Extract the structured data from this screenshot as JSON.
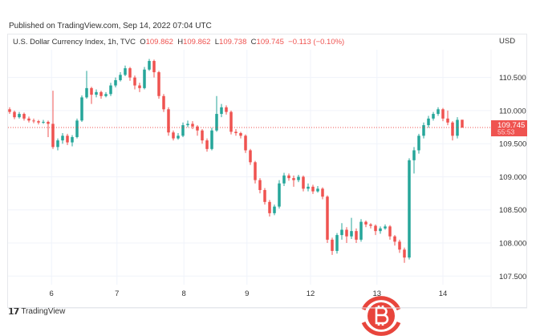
{
  "published": "Published on TradingView.com, Sep 14, 2022 07:04 UTC",
  "legend": {
    "symbol": "U.S. Dollar Currency Index, 1h, TVC",
    "o_label": "O",
    "o": "109.862",
    "h_label": "H",
    "h": "109.862",
    "l_label": "L",
    "l": "109.738",
    "c_label": "C",
    "c": "109.745",
    "change": "−0.113 (−0.10%)"
  },
  "currency": "USD",
  "last_price_label": "109.745",
  "countdown": "55:53",
  "brand": "TradingView",
  "colors": {
    "up": "#26a69a",
    "down": "#ef5350",
    "grid": "#f0f3fa",
    "watermark": "#e8453c"
  },
  "watermark_icon": "bitcoin-logo",
  "chart_data": {
    "type": "candlestick",
    "title": "U.S. Dollar Currency Index, 1h, TVC",
    "ylim": [
      107.37,
      110.92
    ],
    "grid": true,
    "last_price": 109.745,
    "y_ticks": [
      "110.500",
      "110.000",
      "109.500",
      "109.000",
      "108.500",
      "108.000",
      "107.500"
    ],
    "x_ticks": [
      {
        "label": "6",
        "at_candle": 8.7
      },
      {
        "label": "7",
        "at_candle": 22.3
      },
      {
        "label": "8",
        "at_candle": 36.2
      },
      {
        "label": "9",
        "at_candle": 49.3
      },
      {
        "label": "12",
        "at_candle": 62.5
      },
      {
        "label": "13",
        "at_candle": 76.3
      },
      {
        "label": "14",
        "at_candle": 90
      }
    ],
    "ohlc": [
      [
        110.02,
        110.05,
        109.95,
        109.98
      ],
      [
        109.98,
        110.0,
        109.87,
        109.9
      ],
      [
        109.9,
        109.98,
        109.88,
        109.95
      ],
      [
        109.95,
        109.97,
        109.85,
        109.88
      ],
      [
        109.88,
        109.91,
        109.82,
        109.85
      ],
      [
        109.85,
        109.88,
        109.81,
        109.84
      ],
      [
        109.84,
        109.86,
        109.79,
        109.82
      ],
      [
        109.82,
        109.86,
        109.8,
        109.83
      ],
      [
        109.83,
        109.85,
        109.6,
        109.8
      ],
      [
        109.8,
        110.3,
        109.42,
        109.45
      ],
      [
        109.45,
        109.58,
        109.4,
        109.55
      ],
      [
        109.55,
        109.66,
        109.5,
        109.62
      ],
      [
        109.62,
        109.65,
        109.48,
        109.52
      ],
      [
        109.52,
        109.63,
        109.46,
        109.6
      ],
      [
        109.6,
        109.88,
        109.58,
        109.85
      ],
      [
        109.85,
        110.23,
        109.83,
        110.2
      ],
      [
        110.2,
        110.6,
        110.18,
        110.34
      ],
      [
        110.34,
        110.36,
        110.1,
        110.24
      ],
      [
        110.24,
        110.32,
        110.2,
        110.28
      ],
      [
        110.28,
        110.3,
        110.18,
        110.22
      ],
      [
        110.22,
        110.28,
        110.2,
        110.25
      ],
      [
        110.25,
        110.42,
        110.22,
        110.38
      ],
      [
        110.38,
        110.5,
        110.35,
        110.46
      ],
      [
        110.46,
        110.58,
        110.44,
        110.54
      ],
      [
        110.54,
        110.68,
        110.52,
        110.64
      ],
      [
        110.64,
        110.66,
        110.45,
        110.5
      ],
      [
        110.5,
        110.53,
        110.32,
        110.38
      ],
      [
        110.38,
        110.42,
        110.28,
        110.34
      ],
      [
        110.34,
        110.66,
        110.32,
        110.62
      ],
      [
        110.62,
        110.78,
        110.6,
        110.75
      ],
      [
        110.75,
        110.77,
        110.5,
        110.58
      ],
      [
        110.58,
        110.6,
        110.18,
        110.22
      ],
      [
        110.22,
        110.25,
        109.98,
        110.02
      ],
      [
        110.02,
        110.05,
        109.62,
        109.67
      ],
      [
        109.67,
        109.7,
        109.55,
        109.58
      ],
      [
        109.58,
        109.66,
        109.56,
        109.62
      ],
      [
        109.62,
        109.82,
        109.6,
        109.78
      ],
      [
        109.78,
        109.85,
        109.75,
        109.8
      ],
      [
        109.8,
        109.84,
        109.72,
        109.76
      ],
      [
        109.76,
        109.78,
        109.62,
        109.7
      ],
      [
        109.7,
        109.72,
        109.5,
        109.55
      ],
      [
        109.55,
        109.58,
        109.38,
        109.42
      ],
      [
        109.42,
        109.74,
        109.4,
        109.7
      ],
      [
        109.7,
        110.22,
        109.68,
        109.95
      ],
      [
        109.95,
        110.1,
        109.9,
        110.05
      ],
      [
        110.05,
        110.08,
        109.94,
        109.98
      ],
      [
        109.98,
        110.0,
        109.64,
        109.68
      ],
      [
        109.68,
        109.72,
        109.62,
        109.66
      ],
      [
        109.66,
        109.68,
        109.58,
        109.62
      ],
      [
        109.62,
        109.64,
        109.36,
        109.4
      ],
      [
        109.4,
        109.42,
        109.18,
        109.22
      ],
      [
        109.22,
        109.24,
        108.9,
        108.95
      ],
      [
        108.95,
        108.98,
        108.75,
        108.8
      ],
      [
        108.8,
        108.83,
        108.58,
        108.62
      ],
      [
        108.62,
        108.65,
        108.4,
        108.45
      ],
      [
        108.45,
        108.58,
        108.42,
        108.55
      ],
      [
        108.55,
        108.95,
        108.52,
        108.9
      ],
      [
        108.9,
        109.06,
        108.86,
        109.02
      ],
      [
        109.02,
        109.05,
        108.94,
        108.98
      ],
      [
        108.98,
        109.02,
        108.85,
        108.95
      ],
      [
        108.95,
        109.03,
        108.92,
        109.0
      ],
      [
        109.0,
        109.02,
        108.78,
        108.82
      ],
      [
        108.82,
        108.9,
        108.78,
        108.85
      ],
      [
        108.85,
        108.88,
        108.74,
        108.78
      ],
      [
        108.78,
        108.86,
        108.76,
        108.82
      ],
      [
        108.82,
        108.84,
        108.66,
        108.7
      ],
      [
        108.7,
        108.72,
        108.0,
        108.05
      ],
      [
        108.05,
        108.08,
        107.82,
        107.88
      ],
      [
        107.88,
        108.15,
        107.84,
        108.12
      ],
      [
        108.12,
        108.3,
        108.05,
        108.2
      ],
      [
        108.2,
        108.24,
        108.0,
        108.1
      ],
      [
        108.1,
        108.38,
        108.06,
        108.18
      ],
      [
        108.18,
        108.22,
        108.0,
        108.05
      ],
      [
        108.05,
        108.36,
        108.02,
        108.32
      ],
      [
        108.32,
        108.34,
        108.24,
        108.28
      ],
      [
        108.28,
        108.3,
        108.22,
        108.26
      ],
      [
        108.26,
        108.28,
        108.12,
        108.18
      ],
      [
        108.18,
        108.25,
        108.14,
        108.22
      ],
      [
        108.22,
        108.28,
        108.2,
        108.25
      ],
      [
        108.25,
        108.27,
        108.05,
        108.1
      ],
      [
        108.1,
        108.12,
        107.96,
        108.02
      ],
      [
        108.02,
        108.05,
        107.85,
        107.9
      ],
      [
        107.9,
        107.93,
        107.7,
        107.78
      ],
      [
        107.78,
        109.28,
        107.75,
        109.25
      ],
      [
        109.25,
        109.45,
        109.05,
        109.4
      ],
      [
        109.4,
        109.65,
        109.35,
        109.62
      ],
      [
        109.62,
        109.82,
        109.58,
        109.78
      ],
      [
        109.78,
        109.92,
        109.74,
        109.88
      ],
      [
        109.88,
        109.98,
        109.85,
        109.95
      ],
      [
        109.95,
        110.05,
        109.92,
        110.02
      ],
      [
        110.02,
        110.04,
        109.84,
        109.88
      ],
      [
        109.88,
        110.0,
        109.78,
        109.82
      ],
      [
        109.82,
        109.84,
        109.55,
        109.62
      ],
      [
        109.62,
        109.9,
        109.58,
        109.86
      ],
      [
        109.862,
        109.862,
        109.738,
        109.745
      ]
    ]
  }
}
